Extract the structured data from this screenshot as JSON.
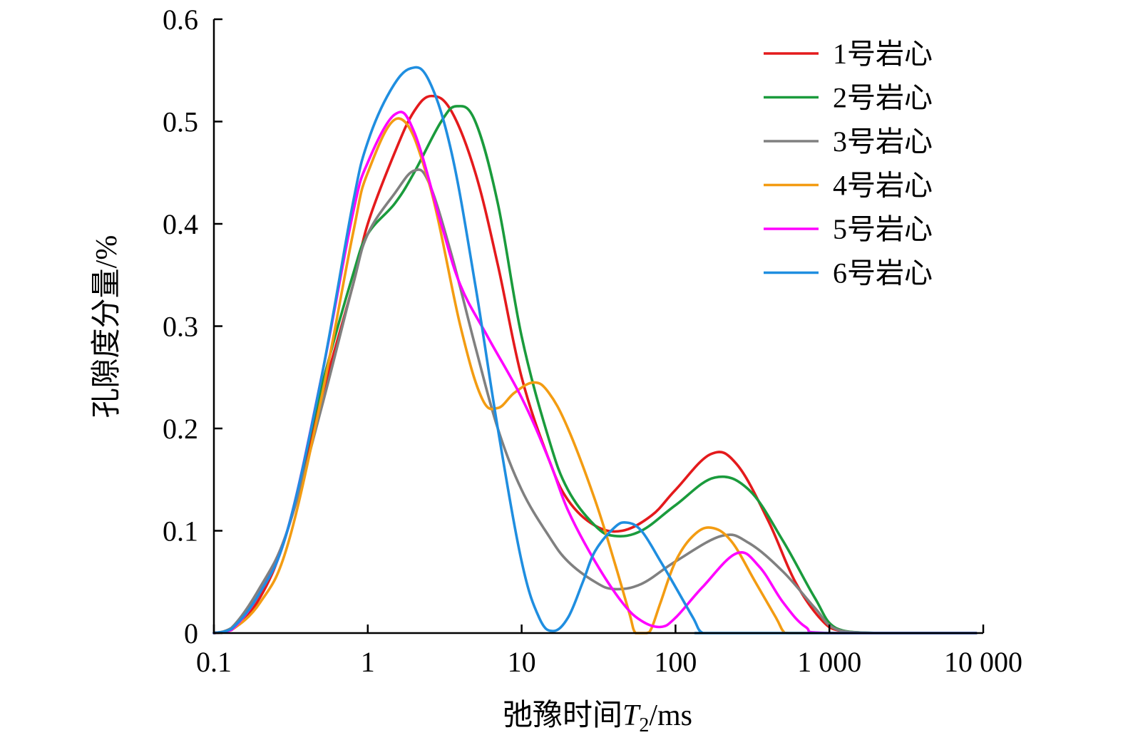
{
  "chart_data": {
    "type": "line",
    "title": "",
    "xlabel": "弛豫时间",
    "xlabel_var": "T",
    "xlabel_sub": "2",
    "xlabel_unit": "/ms",
    "ylabel": "孔隙度分量/%",
    "x_scale": "log",
    "xlim": [
      0.1,
      10000
    ],
    "ylim": [
      0,
      0.6
    ],
    "x_ticks": [
      0.1,
      1,
      10,
      100,
      1000,
      10000
    ],
    "x_tick_labels": [
      "0.1",
      "1",
      "10",
      "100",
      "1 000",
      "10 000"
    ],
    "y_ticks": [
      0,
      0.1,
      0.2,
      0.3,
      0.4,
      0.5,
      0.6
    ],
    "y_tick_labels": [
      "0",
      "0.1",
      "0.2",
      "0.3",
      "0.4",
      "0.5",
      "0.6"
    ],
    "grid": false,
    "legend_position": "top-right",
    "series": [
      {
        "name": "1号岩心",
        "color": "#e41a1c",
        "x": [
          0.1,
          0.13,
          0.2,
          0.3,
          0.5,
          0.8,
          1.0,
          1.5,
          2.0,
          2.6,
          3.5,
          5,
          7,
          10,
          15,
          20,
          30,
          45,
          70,
          100,
          170,
          250,
          400,
          600,
          900,
          1200,
          2000,
          5000,
          9000
        ],
        "y": [
          0,
          0.003,
          0.035,
          0.1,
          0.23,
          0.34,
          0.4,
          0.47,
          0.51,
          0.525,
          0.51,
          0.45,
          0.36,
          0.25,
          0.17,
          0.13,
          0.105,
          0.1,
          0.115,
          0.14,
          0.175,
          0.165,
          0.11,
          0.05,
          0.012,
          0.002,
          0,
          0,
          0
        ]
      },
      {
        "name": "2号岩心",
        "color": "#1a9b3c",
        "x": [
          0.1,
          0.13,
          0.2,
          0.3,
          0.5,
          0.8,
          1.0,
          1.5,
          2.0,
          3.0,
          3.8,
          5,
          7,
          10,
          15,
          20,
          30,
          40,
          60,
          100,
          180,
          300,
          500,
          800,
          1100,
          2000,
          5000,
          9000
        ],
        "y": [
          0,
          0.004,
          0.04,
          0.1,
          0.24,
          0.35,
          0.39,
          0.42,
          0.45,
          0.5,
          0.515,
          0.5,
          0.42,
          0.29,
          0.19,
          0.14,
          0.105,
          0.095,
          0.1,
          0.125,
          0.152,
          0.14,
          0.09,
          0.035,
          0.005,
          0,
          0,
          0
        ]
      },
      {
        "name": "3号岩心",
        "color": "#808080",
        "x": [
          0.1,
          0.13,
          0.2,
          0.3,
          0.5,
          0.8,
          1.0,
          1.5,
          2.0,
          2.5,
          3.5,
          5,
          7,
          10,
          15,
          20,
          30,
          40,
          60,
          100,
          200,
          300,
          500,
          800,
          1100,
          2000,
          5000,
          9000
        ],
        "y": [
          0,
          0.005,
          0.045,
          0.1,
          0.22,
          0.34,
          0.39,
          0.43,
          0.452,
          0.44,
          0.37,
          0.28,
          0.2,
          0.14,
          0.095,
          0.07,
          0.05,
          0.043,
          0.048,
          0.07,
          0.095,
          0.088,
          0.06,
          0.025,
          0.004,
          0,
          0,
          0
        ]
      },
      {
        "name": "4号岩心",
        "color": "#f39c12",
        "x": [
          0.1,
          0.13,
          0.2,
          0.3,
          0.5,
          0.8,
          1.0,
          1.6,
          2.5,
          4,
          5.5,
          7,
          9,
          12,
          15,
          20,
          30,
          40,
          50,
          55,
          65,
          70,
          80,
          100,
          130,
          170,
          230,
          330,
          450,
          500,
          550,
          1000,
          9000
        ],
        "y": [
          0,
          0.003,
          0.03,
          0.085,
          0.23,
          0.39,
          0.45,
          0.503,
          0.44,
          0.3,
          0.23,
          0.22,
          0.235,
          0.245,
          0.235,
          0.2,
          0.13,
          0.07,
          0.02,
          0,
          0,
          0.005,
          0.03,
          0.07,
          0.095,
          0.103,
          0.09,
          0.05,
          0.015,
          0.002,
          0,
          0,
          0
        ]
      },
      {
        "name": "5号岩心",
        "color": "#ff00ff",
        "x": [
          0.1,
          0.13,
          0.2,
          0.3,
          0.5,
          0.8,
          1.0,
          1.5,
          2.0,
          3.0,
          4.0,
          6,
          10,
          15,
          20,
          30,
          45,
          60,
          80,
          100,
          150,
          250,
          350,
          500,
          700,
          1000,
          9000
        ],
        "y": [
          0,
          0.003,
          0.04,
          0.1,
          0.25,
          0.41,
          0.46,
          0.507,
          0.49,
          0.4,
          0.34,
          0.29,
          0.23,
          0.17,
          0.12,
          0.07,
          0.03,
          0.012,
          0.006,
          0.015,
          0.045,
          0.078,
          0.065,
          0.03,
          0.006,
          0,
          0
        ]
      },
      {
        "name": "6号岩心",
        "color": "#1f8ee0",
        "x": [
          0.1,
          0.13,
          0.2,
          0.3,
          0.5,
          0.8,
          1.0,
          1.4,
          1.9,
          2.5,
          3.5,
          5,
          7,
          10,
          13,
          16,
          20,
          25,
          30,
          40,
          48,
          60,
          80,
          100,
          130,
          150,
          200,
          9000
        ],
        "y": [
          0,
          0.004,
          0.04,
          0.1,
          0.25,
          0.42,
          0.48,
          0.53,
          0.552,
          0.54,
          0.47,
          0.34,
          0.2,
          0.07,
          0.015,
          0.002,
          0.015,
          0.05,
          0.08,
          0.103,
          0.108,
          0.1,
          0.07,
          0.045,
          0.015,
          0,
          0,
          0
        ]
      }
    ]
  }
}
